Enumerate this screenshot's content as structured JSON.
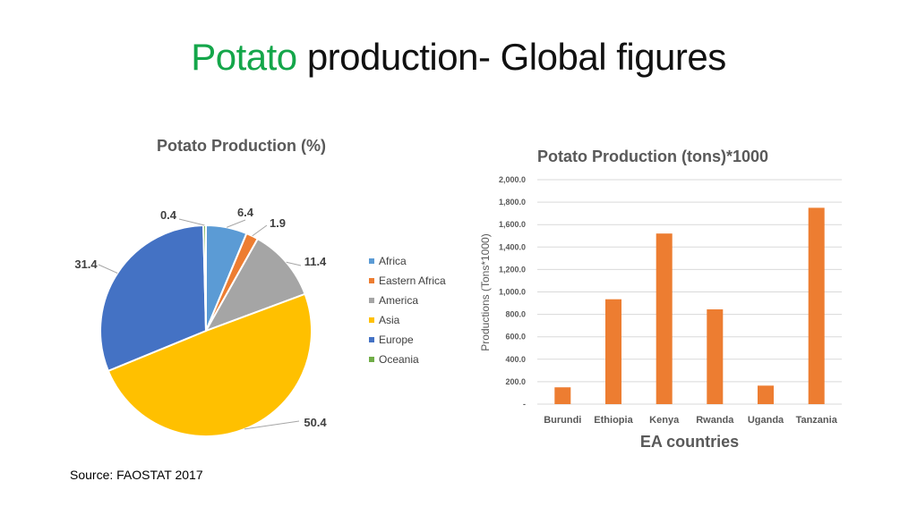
{
  "slide": {
    "title_accent": "Potato",
    "title_rest": " production- Global figures",
    "source": "Source: FAOSTAT 2017"
  },
  "chart_data": [
    {
      "type": "pie",
      "title": "Potato Production (%)",
      "labels": [
        "Africa",
        "Eastern Africa",
        "America",
        "Asia",
        "Europe",
        "Oceania"
      ],
      "values": [
        6.4,
        1.9,
        11.4,
        50.4,
        31.4,
        0.4
      ],
      "data_labels": [
        "6.4",
        "1.9",
        "11.4",
        "50.4",
        "31.4",
        "0.4"
      ],
      "colors": [
        "#5b9bd5",
        "#ed7d31",
        "#a5a5a5",
        "#ffc000",
        "#4472c4",
        "#70ad47"
      ],
      "legend": "right"
    },
    {
      "type": "bar",
      "title": "Potato Production (tons)*1000",
      "xlabel": "EA countries",
      "ylabel": "Productions (Tons*1000)",
      "categories": [
        "Burundi",
        "Ethiopia",
        "Kenya",
        "Rwanda",
        "Uganda",
        "Tanzania"
      ],
      "values": [
        150,
        935,
        1520,
        845,
        165,
        1750
      ],
      "ylim": [
        0,
        2000
      ],
      "yticks": [
        "-",
        "200.0",
        "400.0",
        "600.0",
        "800.0",
        "1,000.0",
        "1,200.0",
        "1,400.0",
        "1,600.0",
        "1,800.0",
        "2,000.0"
      ],
      "color": "#ed7d31",
      "grid": true
    }
  ]
}
